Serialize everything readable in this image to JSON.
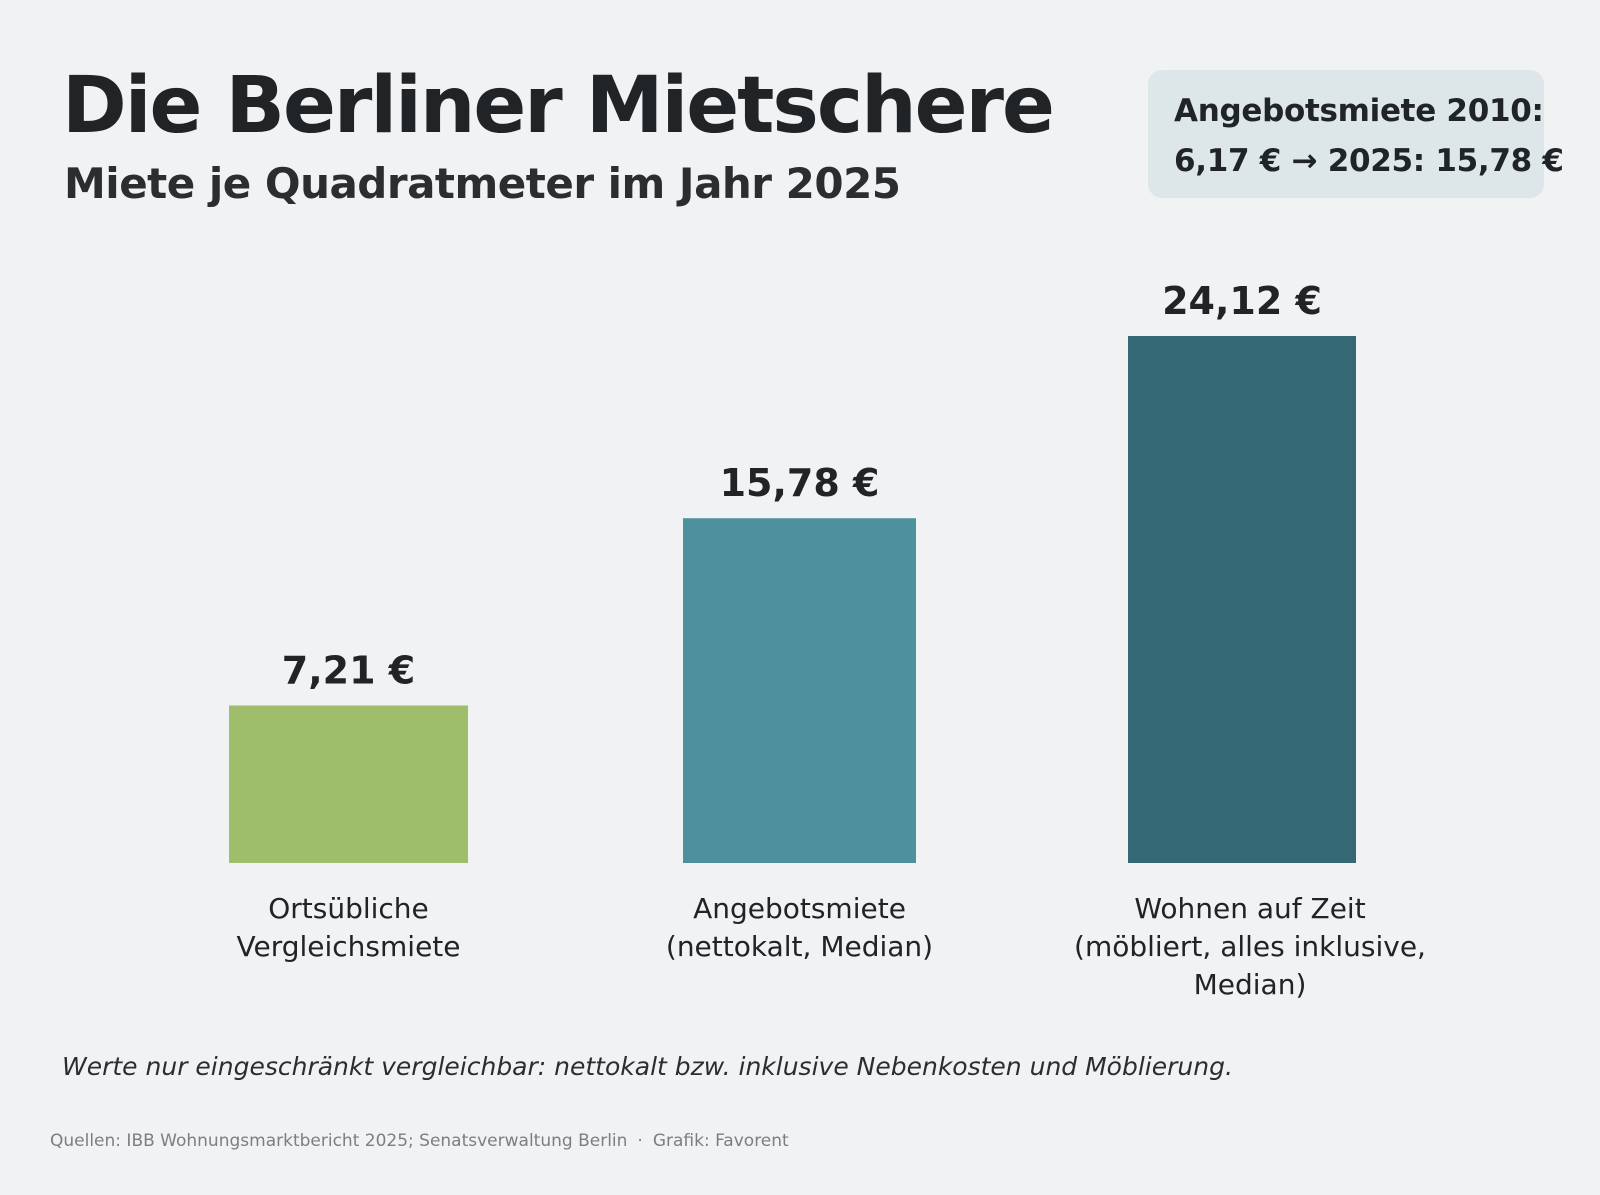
{
  "header": {
    "title": "Die Berliner Mietschere",
    "subtitle": "Miete je Quadratmeter im Jahr 2025"
  },
  "callout": {
    "line1": "Angebotsmiete 2010:",
    "line2": "6,17 €  →  2025: 15,78 €"
  },
  "chart_data": {
    "type": "bar",
    "title": "Die Berliner Mietschere",
    "subtitle": "Miete je Quadratmeter im Jahr 2025",
    "unit": "€",
    "categories": [
      [
        "Ortsübliche",
        "Vergleichsmiete"
      ],
      [
        "Angebotsmiete",
        "(nettokalt, Median)"
      ],
      [
        "Wohnen auf Zeit",
        "(möbliert, alles inklusive,",
        "Median)"
      ]
    ],
    "values": [
      7.21,
      15.78,
      24.12
    ],
    "value_labels": [
      "7,21 €",
      "15,78 €",
      "24,12 €"
    ],
    "colors": [
      "#9fbe6c",
      "#4e919d",
      "#346875"
    ],
    "ylim": [
      0,
      24.12
    ],
    "grid": false,
    "legend": "none"
  },
  "note": "Werte nur eingeschränkt vergleichbar: nettokalt bzw. inklusive Nebenkosten und Möblierung.",
  "footer": {
    "sources": "Quellen: IBB Wohnungsmarktbericht 2025; Senatsverwaltung Berlin",
    "separator": "·",
    "credit": "Grafik: Favorent"
  }
}
